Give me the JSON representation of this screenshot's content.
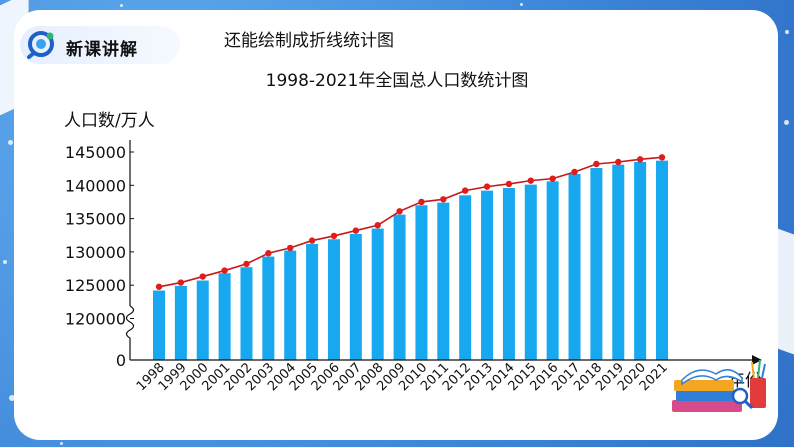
{
  "header": {
    "tab_label": "新课讲解",
    "heading": "还能绘制成折线统计图"
  },
  "colors": {
    "bar": "#17a8ef",
    "line": "#c41a1a",
    "marker": "#e21b1b",
    "background": "#3d86d8"
  },
  "chart_data": {
    "type": "bar",
    "title": "1998-2021年全国总人口数统计图",
    "ylabel": "人口数/万人",
    "xlabel": "年份",
    "categories": [
      "1998",
      "1999",
      "2000",
      "2001",
      "2002",
      "2003",
      "2004",
      "2005",
      "2006",
      "2007",
      "2008",
      "2009",
      "2010",
      "2011",
      "2012",
      "2013",
      "2014",
      "2015",
      "2016",
      "2017",
      "2018",
      "2019",
      "2020",
      "2021"
    ],
    "values": [
      124761,
      125786,
      126743,
      127627,
      128453,
      129227,
      129988,
      130756,
      131448,
      132129,
      132802,
      133450,
      134091,
      134735,
      135404,
      136072,
      136782,
      137462,
      138271,
      139008,
      139538,
      140005,
      141212,
      141260
    ],
    "series": [
      {
        "type": "bar",
        "values": [
          124200,
          124900,
          125700,
          126800,
          127700,
          129300,
          130200,
          131200,
          131900,
          132700,
          133500,
          135600,
          137000,
          137400,
          138500,
          139200,
          139600,
          140100,
          140600,
          141700,
          142600,
          143100,
          143500,
          143700
        ]
      },
      {
        "type": "line",
        "values": [
          124761,
          125400,
          126300,
          127200,
          128200,
          129800,
          130600,
          131700,
          132400,
          133200,
          134000,
          136100,
          137500,
          137900,
          139200,
          139800,
          140200,
          140700,
          141000,
          142000,
          143200,
          143500,
          143900,
          144200
        ]
      }
    ],
    "yticks": [
      0,
      120000,
      125000,
      130000,
      135000,
      140000,
      145000
    ],
    "ylim": [
      0,
      145000
    ],
    "axis_break": true,
    "grid": false,
    "legend": "none"
  }
}
